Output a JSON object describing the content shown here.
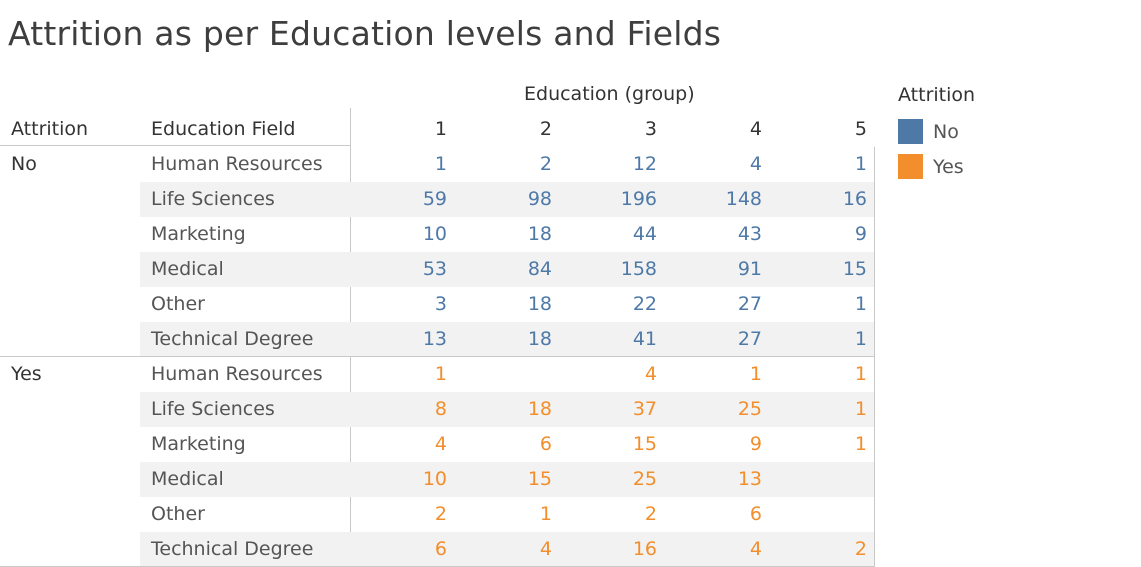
{
  "title": "Attrition as per Education levels and Fields",
  "headers": {
    "attrition": "Attrition",
    "field": "Education Field",
    "group": "Education (group)"
  },
  "colors": {
    "No": "#4e79a7",
    "Yes": "#f28e2b"
  },
  "legend": {
    "title": "Attrition",
    "items": [
      {
        "label": "No",
        "color": "#4e79a7"
      },
      {
        "label": "Yes",
        "color": "#f28e2b"
      }
    ]
  },
  "chart_data": {
    "type": "table",
    "title": "Attrition as per Education levels and Fields",
    "columns": [
      "1",
      "2",
      "3",
      "4",
      "5"
    ],
    "groups": [
      {
        "name": "No",
        "rows": [
          {
            "field": "Human Resources",
            "values": [
              "1",
              "2",
              "12",
              "4",
              "1"
            ]
          },
          {
            "field": "Life Sciences",
            "values": [
              "59",
              "98",
              "196",
              "148",
              "16"
            ]
          },
          {
            "field": "Marketing",
            "values": [
              "10",
              "18",
              "44",
              "43",
              "9"
            ]
          },
          {
            "field": "Medical",
            "values": [
              "53",
              "84",
              "158",
              "91",
              "15"
            ]
          },
          {
            "field": "Other",
            "values": [
              "3",
              "18",
              "22",
              "27",
              "1"
            ]
          },
          {
            "field": "Technical Degree",
            "values": [
              "13",
              "18",
              "41",
              "27",
              "1"
            ]
          }
        ]
      },
      {
        "name": "Yes",
        "rows": [
          {
            "field": "Human Resources",
            "values": [
              "1",
              "",
              "4",
              "1",
              "1"
            ]
          },
          {
            "field": "Life Sciences",
            "values": [
              "8",
              "18",
              "37",
              "25",
              "1"
            ]
          },
          {
            "field": "Marketing",
            "values": [
              "4",
              "6",
              "15",
              "9",
              "1"
            ]
          },
          {
            "field": "Medical",
            "values": [
              "10",
              "15",
              "25",
              "13",
              ""
            ]
          },
          {
            "field": "Other",
            "values": [
              "2",
              "1",
              "2",
              "6",
              ""
            ]
          },
          {
            "field": "Technical Degree",
            "values": [
              "6",
              "4",
              "16",
              "4",
              "2"
            ]
          }
        ]
      }
    ]
  }
}
